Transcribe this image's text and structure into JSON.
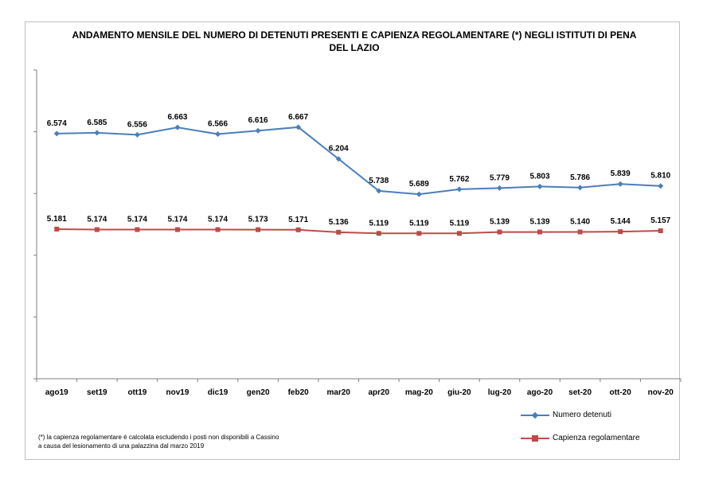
{
  "title_line1": "ANDAMENTO MENSILE  DEL NUMERO DI DETENUTI PRESENTI E CAPIENZA REGOLAMENTARE (*) NEGLI ISTITUTI DI PENA",
  "title_line2": "DEL LAZIO",
  "note_line1": "(*) la capienza regolamentare è calcolata escludendo i posti non disponibili a Cassino",
  "note_line2": "a causa del lesionamento di una palazzina dal marzo 2019",
  "legend": {
    "series1": "Numero detenuti",
    "series2": "Capienza regolamentare"
  },
  "colors": {
    "series1": "#4a7ebb",
    "series2": "#be4b48"
  },
  "chart_data": {
    "type": "line",
    "categories": [
      "ago19",
      "set19",
      "ott19",
      "nov19",
      "dic19",
      "gen20",
      "feb20",
      "mar20",
      "apr20",
      "mag-20",
      "giu-20",
      "lug-20",
      "ago-20",
      "set-20",
      "ott-20",
      "nov-20"
    ],
    "ylim": [
      3000,
      7500
    ],
    "grid": false,
    "legend_position": "bottom-right",
    "series": [
      {
        "name": "Numero detenuti",
        "values": [
          6574,
          6585,
          6556,
          6663,
          6566,
          6616,
          6667,
          6204,
          5738,
          5689,
          5762,
          5779,
          5803,
          5786,
          5839,
          5810
        ],
        "labels": [
          "6.574",
          "6.585",
          "6.556",
          "6.663",
          "6.566",
          "6.616",
          "6.667",
          "6.204",
          "5.738",
          "5.689",
          "5.762",
          "5.779",
          "5.803",
          "5.786",
          "5.839",
          "5.810"
        ]
      },
      {
        "name": "Capienza regolamentare",
        "values": [
          5181,
          5174,
          5174,
          5174,
          5174,
          5173,
          5171,
          5136,
          5119,
          5119,
          5119,
          5139,
          5139,
          5140,
          5144,
          5157
        ],
        "labels": [
          "5.181",
          "5.174",
          "5.174",
          "5.174",
          "5.174",
          "5.173",
          "5.171",
          "5.136",
          "5.119",
          "5.119",
          "5.119",
          "5.139",
          "5.139",
          "5.140",
          "5.144",
          "5.157"
        ]
      }
    ]
  }
}
